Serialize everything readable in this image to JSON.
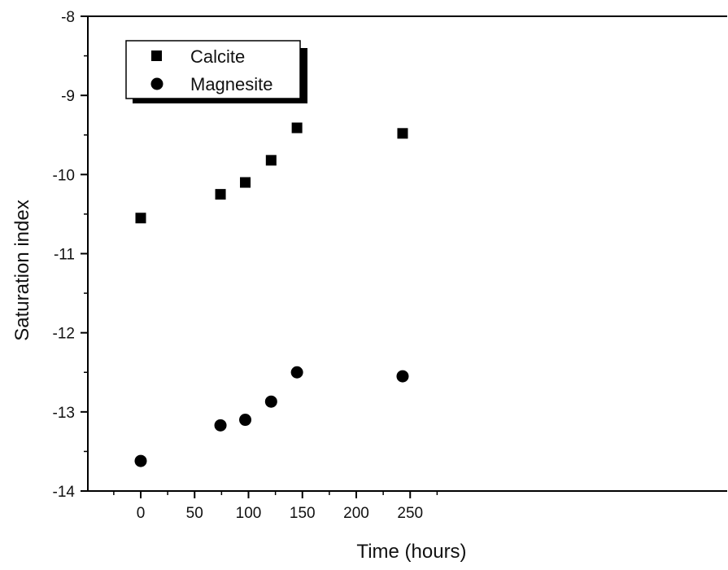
{
  "chart_data": {
    "type": "scatter",
    "title": "",
    "xlabel": "Time (hours)",
    "ylabel": "Saturation index",
    "xlim": [
      -20,
      270
    ],
    "ylim": [
      -14,
      -8
    ],
    "x_ticks": [
      0,
      50,
      100,
      150,
      200,
      250
    ],
    "x_tick_labels": [
      "0",
      "50",
      "100",
      "150",
      "200",
      "250"
    ],
    "y_ticks": [
      -14,
      -13,
      -12,
      -11,
      -10,
      -9,
      -8
    ],
    "y_tick_labels": [
      "-14",
      "-13",
      "-12",
      "-11",
      "-10",
      "-9",
      "-8"
    ],
    "grid": false,
    "legend_position": "top-left",
    "series": [
      {
        "name": "Calcite",
        "marker": "square",
        "color": "#000000",
        "x": [
          0,
          74,
          97,
          121,
          145,
          243
        ],
        "y": [
          -10.55,
          -10.25,
          -10.1,
          -9.82,
          -9.41,
          -9.48
        ]
      },
      {
        "name": "Magnesite",
        "marker": "circle",
        "color": "#000000",
        "x": [
          0,
          74,
          97,
          121,
          145,
          243
        ],
        "y": [
          -13.62,
          -13.17,
          -13.1,
          -12.87,
          -12.5,
          -12.55
        ]
      }
    ]
  }
}
